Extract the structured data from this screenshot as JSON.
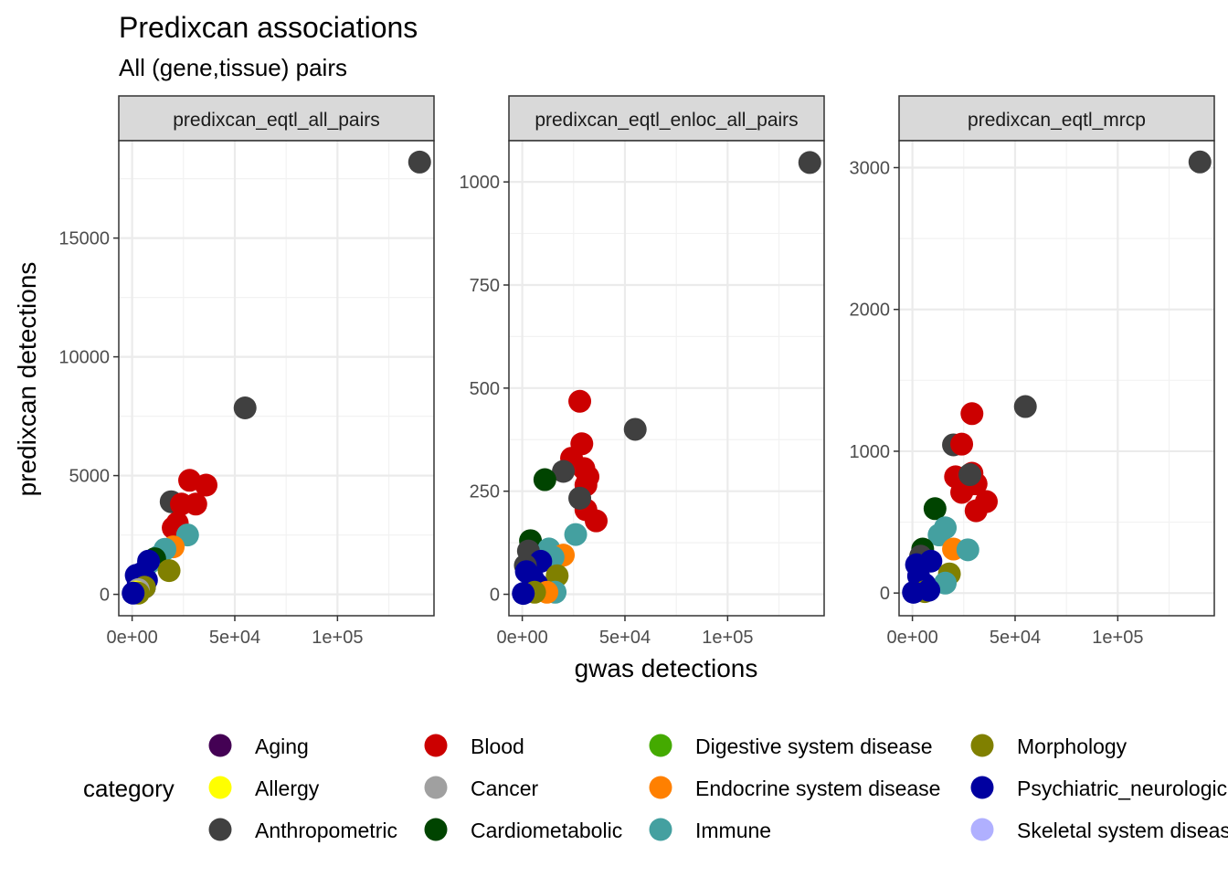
{
  "chart_data": {
    "type": "scatter",
    "title": "Predixcan associations",
    "subtitle": "All (gene,tissue) pairs",
    "xlabel": "gwas detections",
    "ylabel": "predixcan detections",
    "legend": {
      "title": "category",
      "placement": "bottom",
      "entries": [
        {
          "name": "Aging",
          "color": "#440154"
        },
        {
          "name": "Allergy",
          "color": "#FFFF00"
        },
        {
          "name": "Anthropometric",
          "color": "#404040"
        },
        {
          "name": "Blood",
          "color": "#CC0000"
        },
        {
          "name": "Cancer",
          "color": "#A0A0A0"
        },
        {
          "name": "Cardiometabolic",
          "color": "#004400"
        },
        {
          "name": "Digestive system disease",
          "color": "#44AA00"
        },
        {
          "name": "Endocrine system disease",
          "color": "#FF8000"
        },
        {
          "name": "Immune",
          "color": "#44A0A0"
        },
        {
          "name": "Morphology",
          "color": "#808000"
        },
        {
          "name": "Psychiatric_neurologic",
          "color": "#0000A0"
        },
        {
          "name": "Skeletal system disease",
          "color": "#B0B0FF"
        }
      ]
    },
    "grid": true,
    "panels": [
      {
        "strip": "predixcan_eqtl_all_pairs",
        "xlim": [
          -6500,
          147000
        ],
        "ylim": [
          -900,
          19100
        ],
        "xticks": [
          0,
          50000,
          100000
        ],
        "xtick_labels": [
          "0e+00",
          "5e+04",
          "1e+05"
        ],
        "yticks": [
          0,
          5000,
          10000,
          15000
        ],
        "ytick_labels": [
          "0",
          "5000",
          "10000",
          "15000"
        ],
        "points": [
          {
            "category": "Anthropometric",
            "x": 140000,
            "y": 18200
          },
          {
            "category": "Anthropometric",
            "x": 55000,
            "y": 7850
          },
          {
            "category": "Anthropometric",
            "x": 19000,
            "y": 3900
          },
          {
            "category": "Blood",
            "x": 28000,
            "y": 4800
          },
          {
            "category": "Blood",
            "x": 36000,
            "y": 4600
          },
          {
            "category": "Blood",
            "x": 24000,
            "y": 3800
          },
          {
            "category": "Blood",
            "x": 31000,
            "y": 3800
          },
          {
            "category": "Blood",
            "x": 22000,
            "y": 3000
          },
          {
            "category": "Blood",
            "x": 20000,
            "y": 2800
          },
          {
            "category": "Immune",
            "x": 27000,
            "y": 2500
          },
          {
            "category": "Endocrine system disease",
            "x": 20000,
            "y": 2000
          },
          {
            "category": "Immune",
            "x": 16000,
            "y": 1900
          },
          {
            "category": "Immune",
            "x": 13000,
            "y": 1600
          },
          {
            "category": "Cardiometabolic",
            "x": 11000,
            "y": 1500
          },
          {
            "category": "Immune",
            "x": 8000,
            "y": 1300
          },
          {
            "category": "Morphology",
            "x": 18000,
            "y": 1000
          },
          {
            "category": "Psychiatric_neurologic",
            "x": 8000,
            "y": 1400
          },
          {
            "category": "Psychiatric_neurologic",
            "x": 5000,
            "y": 900
          },
          {
            "category": "Psychiatric_neurologic",
            "x": 7000,
            "y": 600
          },
          {
            "category": "Psychiatric_neurologic",
            "x": 2000,
            "y": 800
          },
          {
            "category": "Psychiatric_neurologic",
            "x": 3000,
            "y": 500
          },
          {
            "category": "Psychiatric_neurologic",
            "x": 6000,
            "y": 300
          },
          {
            "category": "Morphology",
            "x": 6000,
            "y": 300
          },
          {
            "category": "Cancer",
            "x": 3000,
            "y": 200
          },
          {
            "category": "Allergy",
            "x": 2000,
            "y": 100
          },
          {
            "category": "Morphology",
            "x": 3000,
            "y": 50
          },
          {
            "category": "Psychiatric_neurologic",
            "x": 500,
            "y": 50
          }
        ]
      },
      {
        "strip": "predixcan_eqtl_enloc_all_pairs",
        "xlim": [
          -6500,
          147000
        ],
        "ylim": [
          -52,
          1100
        ],
        "xticks": [
          0,
          50000,
          100000
        ],
        "xtick_labels": [
          "0e+00",
          "5e+04",
          "1e+05"
        ],
        "yticks": [
          0,
          250,
          500,
          750,
          1000
        ],
        "ytick_labels": [
          "0",
          "250",
          "500",
          "750",
          "1000"
        ],
        "points": [
          {
            "category": "Anthropometric",
            "x": 140000,
            "y": 1047
          },
          {
            "category": "Anthropometric",
            "x": 55000,
            "y": 400
          },
          {
            "category": "Blood",
            "x": 28000,
            "y": 468
          },
          {
            "category": "Blood",
            "x": 29000,
            "y": 365
          },
          {
            "category": "Blood",
            "x": 24000,
            "y": 330
          },
          {
            "category": "Blood",
            "x": 30000,
            "y": 305
          },
          {
            "category": "Blood",
            "x": 32000,
            "y": 285
          },
          {
            "category": "Blood",
            "x": 31000,
            "y": 265
          },
          {
            "category": "Blood",
            "x": 31000,
            "y": 205
          },
          {
            "category": "Blood",
            "x": 36000,
            "y": 178
          },
          {
            "category": "Anthropometric",
            "x": 20000,
            "y": 298
          },
          {
            "category": "Anthropometric",
            "x": 28000,
            "y": 233
          },
          {
            "category": "Cardiometabolic",
            "x": 11000,
            "y": 278
          },
          {
            "category": "Immune",
            "x": 26000,
            "y": 145
          },
          {
            "category": "Cardiometabolic",
            "x": 4000,
            "y": 130
          },
          {
            "category": "Immune",
            "x": 13000,
            "y": 110
          },
          {
            "category": "Anthropometric",
            "x": 3000,
            "y": 105
          },
          {
            "category": "Endocrine system disease",
            "x": 20000,
            "y": 95
          },
          {
            "category": "Immune",
            "x": 15000,
            "y": 90
          },
          {
            "category": "Psychiatric_neurologic",
            "x": 9000,
            "y": 80
          },
          {
            "category": "Anthropometric",
            "x": 1500,
            "y": 70
          },
          {
            "category": "Psychiatric_neurologic",
            "x": 2000,
            "y": 55
          },
          {
            "category": "Morphology",
            "x": 17000,
            "y": 45
          },
          {
            "category": "Psychiatric_neurologic",
            "x": 5000,
            "y": 40
          },
          {
            "category": "Psychiatric_neurologic",
            "x": 7000,
            "y": 25
          },
          {
            "category": "Immune",
            "x": 16000,
            "y": 5
          },
          {
            "category": "Endocrine system disease",
            "x": 12000,
            "y": 5
          },
          {
            "category": "Morphology",
            "x": 6000,
            "y": 5
          },
          {
            "category": "Psychiatric_neurologic",
            "x": 500,
            "y": 2
          }
        ]
      },
      {
        "strip": "predixcan_eqtl_mrcp",
        "xlim": [
          -6500,
          147000
        ],
        "ylim": [
          -160,
          3190
        ],
        "xticks": [
          0,
          50000,
          100000
        ],
        "xtick_labels": [
          "0e+00",
          "5e+04",
          "1e+05"
        ],
        "yticks": [
          0,
          1000,
          2000,
          3000
        ],
        "ytick_labels": [
          "0",
          "1000",
          "2000",
          "3000"
        ],
        "points": [
          {
            "category": "Anthropometric",
            "x": 140000,
            "y": 3040
          },
          {
            "category": "Anthropometric",
            "x": 55000,
            "y": 1315
          },
          {
            "category": "Blood",
            "x": 29000,
            "y": 1265
          },
          {
            "category": "Anthropometric",
            "x": 20000,
            "y": 1045
          },
          {
            "category": "Blood",
            "x": 24000,
            "y": 1050
          },
          {
            "category": "Blood",
            "x": 29000,
            "y": 845
          },
          {
            "category": "Blood",
            "x": 21000,
            "y": 820
          },
          {
            "category": "Blood",
            "x": 31000,
            "y": 770
          },
          {
            "category": "Blood",
            "x": 27000,
            "y": 760
          },
          {
            "category": "Blood",
            "x": 24000,
            "y": 710
          },
          {
            "category": "Blood",
            "x": 36000,
            "y": 645
          },
          {
            "category": "Blood",
            "x": 31000,
            "y": 580
          },
          {
            "category": "Anthropometric",
            "x": 28000,
            "y": 835
          },
          {
            "category": "Cardiometabolic",
            "x": 11000,
            "y": 595
          },
          {
            "category": "Immune",
            "x": 16000,
            "y": 460
          },
          {
            "category": "Immune",
            "x": 13000,
            "y": 410
          },
          {
            "category": "Endocrine system disease",
            "x": 20000,
            "y": 310
          },
          {
            "category": "Immune",
            "x": 27000,
            "y": 305
          },
          {
            "category": "Cardiometabolic",
            "x": 5000,
            "y": 310
          },
          {
            "category": "Anthropometric",
            "x": 4000,
            "y": 260
          },
          {
            "category": "Psychiatric_neurologic",
            "x": 9000,
            "y": 225
          },
          {
            "category": "Psychiatric_neurologic",
            "x": 2000,
            "y": 200
          },
          {
            "category": "Morphology",
            "x": 18000,
            "y": 135
          },
          {
            "category": "Psychiatric_neurologic",
            "x": 3000,
            "y": 120
          },
          {
            "category": "Immune",
            "x": 16000,
            "y": 70
          },
          {
            "category": "Psychiatric_neurologic",
            "x": 6000,
            "y": 60
          },
          {
            "category": "Morphology",
            "x": 6000,
            "y": 10
          },
          {
            "category": "Psychiatric_neurologic",
            "x": 8000,
            "y": 20
          },
          {
            "category": "Psychiatric_neurologic",
            "x": 500,
            "y": 5
          }
        ]
      }
    ]
  }
}
